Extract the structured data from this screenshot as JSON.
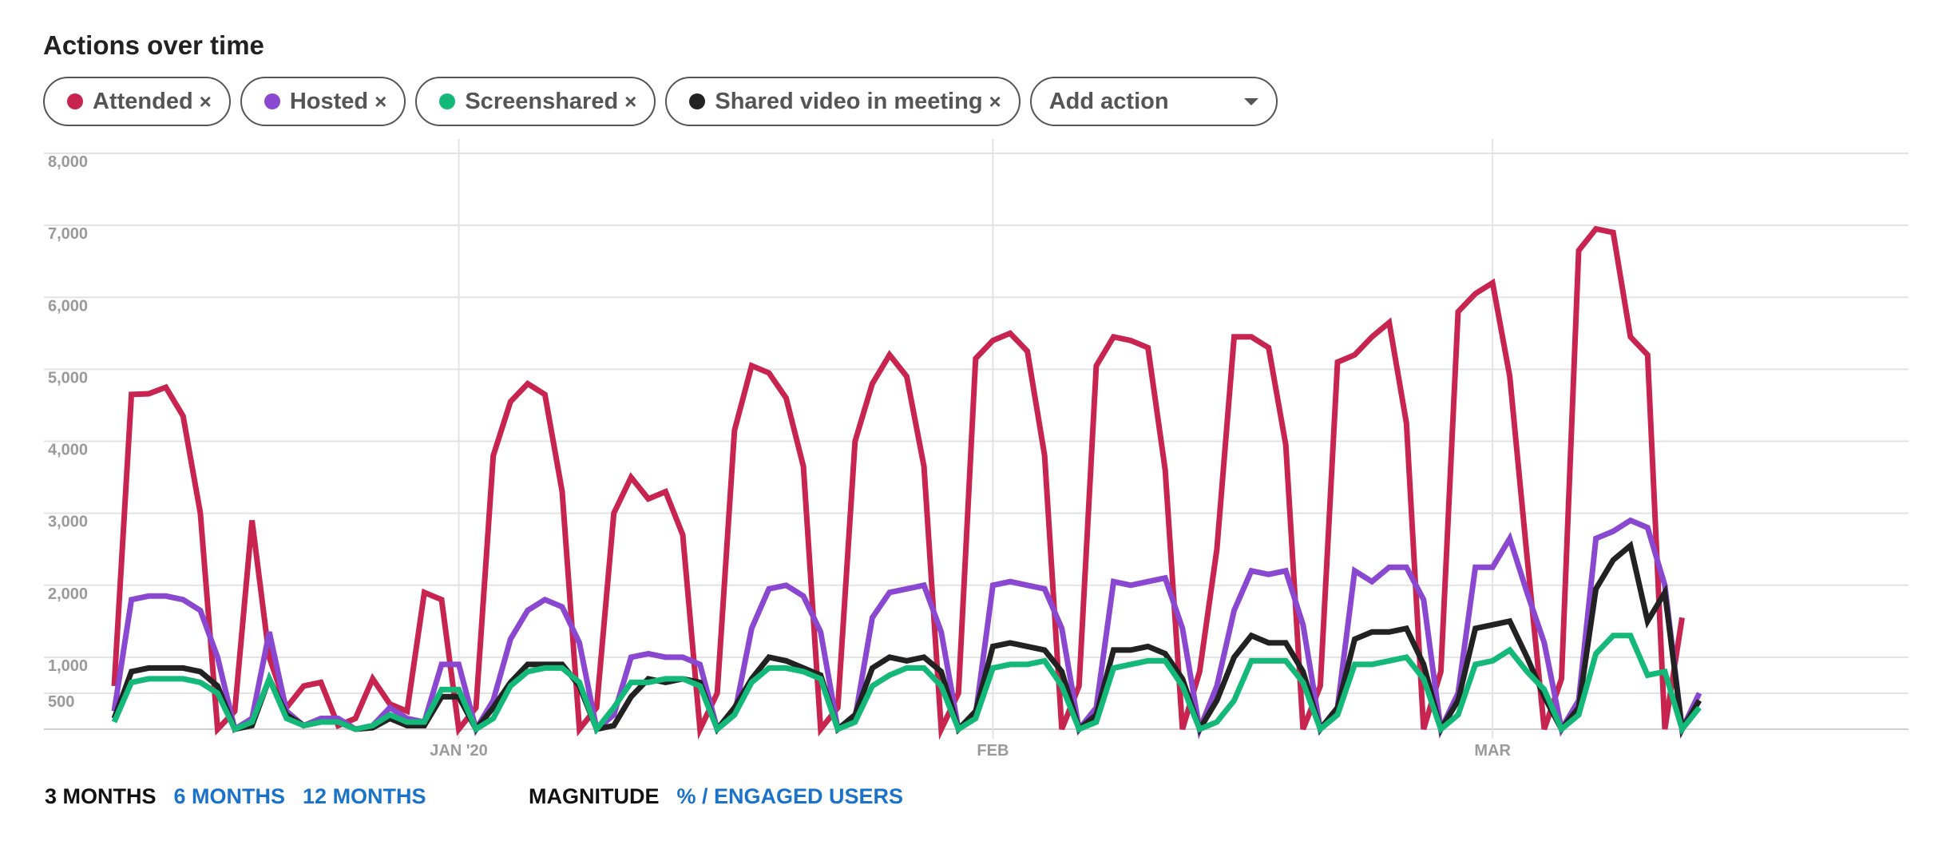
{
  "title": "Actions over time",
  "chips": [
    {
      "label": "Attended",
      "close": "×",
      "color": "#c72450"
    },
    {
      "label": "Hosted",
      "close": "×",
      "color": "#8a48d0"
    },
    {
      "label": "Screenshared",
      "close": "×",
      "color": "#14b878"
    },
    {
      "label": "Shared video in meeting",
      "close": "×",
      "color": "#222222"
    }
  ],
  "add_action": {
    "label": "Add action"
  },
  "ranges": [
    "3 MONTHS",
    "6 MONTHS",
    "12 MONTHS"
  ],
  "modes": [
    "MAGNITUDE",
    "% / ENGAGED USERS"
  ],
  "chart_data": {
    "type": "line",
    "title": "Actions over time",
    "ylim": [
      0,
      8000
    ],
    "y_ticks": [
      {
        "value": 500,
        "label": "500"
      },
      {
        "value": 1000,
        "label": "1,000"
      },
      {
        "value": 2000,
        "label": "2,000"
      },
      {
        "value": 3000,
        "label": "3,000"
      },
      {
        "value": 4000,
        "label": "4,000"
      },
      {
        "value": 5000,
        "label": "5,000"
      },
      {
        "value": 6000,
        "label": "6,000"
      },
      {
        "value": 7000,
        "label": "7,000"
      },
      {
        "value": 8000,
        "label": "8,000"
      }
    ],
    "x_day_range": [
      0,
      104
    ],
    "x_ticks": [
      {
        "day": 20,
        "label": "JAN '20"
      },
      {
        "day": 51,
        "label": "FEB"
      },
      {
        "day": 80,
        "label": "MAR"
      }
    ],
    "grid": true,
    "series": [
      {
        "name": "Attended",
        "color": "#c72450",
        "values": [
          600,
          4650,
          4660,
          4750,
          4350,
          3000,
          0,
          250,
          2900,
          1000,
          300,
          600,
          650,
          50,
          150,
          700,
          350,
          250,
          1900,
          1800,
          0,
          300,
          3800,
          4550,
          4800,
          4650,
          3300,
          0,
          300,
          3000,
          3500,
          3200,
          3300,
          2700,
          0,
          500,
          4150,
          5050,
          4950,
          4600,
          3650,
          0,
          300,
          4000,
          4800,
          5200,
          4900,
          3650,
          0,
          500,
          5150,
          5400,
          5500,
          5250,
          3800,
          0,
          600,
          5050,
          5450,
          5400,
          5300,
          3600,
          0,
          800,
          2500,
          5450,
          5450,
          5300,
          3950,
          0,
          600,
          5100,
          5200,
          5450,
          5650,
          4250,
          0,
          800,
          5800,
          6050,
          6200,
          4900,
          2400,
          0,
          700,
          6650,
          6950,
          6900,
          5450,
          5200,
          0,
          1550
        ]
      },
      {
        "name": "Hosted",
        "color": "#8a48d0",
        "values": [
          250,
          1800,
          1850,
          1850,
          1800,
          1650,
          1000,
          0,
          150,
          1350,
          250,
          50,
          150,
          150,
          0,
          50,
          300,
          150,
          100,
          900,
          900,
          0,
          400,
          1250,
          1650,
          1800,
          1700,
          1200,
          0,
          200,
          1000,
          1050,
          1000,
          1000,
          900,
          0,
          200,
          1400,
          1950,
          2000,
          1850,
          1350,
          0,
          150,
          1550,
          1900,
          1950,
          2000,
          1350,
          0,
          200,
          2000,
          2050,
          2000,
          1950,
          1400,
          0,
          300,
          2050,
          2000,
          2050,
          2100,
          1400,
          0,
          600,
          1650,
          2200,
          2150,
          2200,
          1450,
          0,
          300,
          2200,
          2050,
          2250,
          2250,
          1800,
          0,
          500,
          2250,
          2250,
          2650,
          1900,
          1200,
          0,
          400,
          2650,
          2750,
          2900,
          2800,
          2000,
          0,
          500
        ]
      },
      {
        "name": "Shared video in meeting",
        "color": "#222222",
        "values": [
          150,
          800,
          850,
          850,
          850,
          800,
          600,
          0,
          50,
          700,
          200,
          50,
          100,
          100,
          0,
          20,
          150,
          50,
          50,
          450,
          450,
          0,
          300,
          650,
          900,
          900,
          900,
          600,
          0,
          50,
          450,
          700,
          650,
          700,
          650,
          0,
          300,
          700,
          1000,
          950,
          850,
          750,
          0,
          200,
          850,
          1000,
          950,
          1000,
          800,
          0,
          250,
          1150,
          1200,
          1150,
          1100,
          800,
          0,
          200,
          1100,
          1100,
          1150,
          1050,
          700,
          0,
          400,
          1000,
          1300,
          1200,
          1200,
          800,
          0,
          300,
          1250,
          1350,
          1350,
          1400,
          900,
          0,
          400,
          1400,
          1450,
          1500,
          1000,
          450,
          0,
          300,
          1950,
          2350,
          2550,
          1500,
          1900,
          0,
          400
        ]
      },
      {
        "name": "Screenshared",
        "color": "#14b878",
        "values": [
          100,
          650,
          700,
          700,
          700,
          650,
          500,
          0,
          100,
          700,
          150,
          50,
          100,
          100,
          0,
          50,
          200,
          100,
          100,
          550,
          550,
          0,
          150,
          600,
          800,
          850,
          850,
          650,
          0,
          300,
          650,
          650,
          700,
          700,
          600,
          0,
          200,
          650,
          850,
          850,
          800,
          700,
          0,
          100,
          600,
          750,
          850,
          850,
          600,
          0,
          150,
          850,
          900,
          900,
          950,
          600,
          0,
          100,
          850,
          900,
          950,
          950,
          600,
          0,
          100,
          400,
          950,
          950,
          950,
          650,
          0,
          200,
          900,
          900,
          950,
          1000,
          700,
          0,
          200,
          900,
          950,
          1100,
          800,
          550,
          0,
          200,
          1050,
          1300,
          1300,
          750,
          800,
          0,
          300
        ]
      }
    ]
  }
}
